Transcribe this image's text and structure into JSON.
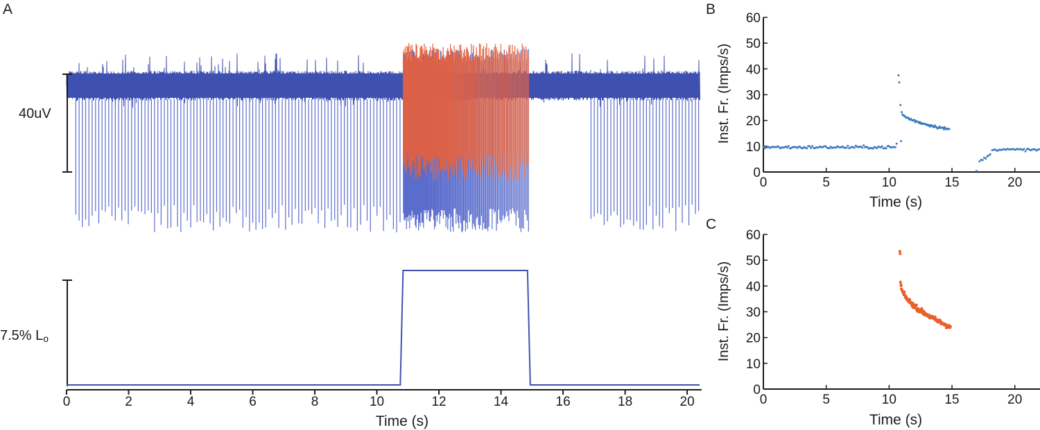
{
  "colors": {
    "trace": "#3f51b0",
    "trace_light": "#5a6ccc",
    "highlight": "#e8603a",
    "b_points": "#3c7dbf",
    "c_points": "#e8602c",
    "axis": "#1a1a1a"
  },
  "chart_data": [
    {
      "panel": "A",
      "type": "line",
      "description_of_content": "raw nerve recording trace",
      "scale_bar_label": "40uV",
      "baseline_firing_hz": 9.5,
      "stim_window_s": [
        10.8,
        14.9
      ],
      "recovery_gap_s": [
        14.9,
        16.9
      ],
      "xlim": [
        0,
        20.4
      ]
    },
    {
      "panel": "A-lower",
      "type": "line",
      "scale_bar_label": "7.5% L",
      "scale_bar_subscript": "o",
      "xlabel": "Time (s)",
      "xticks": [
        0,
        2,
        4,
        6,
        8,
        10,
        12,
        14,
        16,
        18,
        20
      ],
      "xlim": [
        0,
        20.4
      ],
      "step": {
        "low": 0,
        "high": 1,
        "start": 10.8,
        "end": 14.9
      }
    },
    {
      "panel": "B",
      "type": "scatter",
      "xlabel": "Time (s)",
      "ylabel": "Inst. Fr. (Imps/s)",
      "xlim": [
        0,
        22
      ],
      "ylim": [
        0,
        60
      ],
      "xticks": [
        0,
        5,
        10,
        15,
        20
      ],
      "yticks": [
        0,
        10,
        20,
        30,
        40,
        50,
        60
      ],
      "segments": [
        {
          "x_start": 0.0,
          "x_end": 10.5,
          "y_start": 9.6,
          "y_end": 9.6,
          "noise": 0.5,
          "spacing": 0.105
        },
        {
          "x_start": 11.0,
          "x_end": 14.8,
          "y_start": 23.0,
          "y_end": 16.5,
          "noise": 0.45,
          "spacing": 0.06
        },
        {
          "x_start": 17.2,
          "x_end": 18.1,
          "y_start": 4.2,
          "y_end": 6.8,
          "noise": 0.3,
          "spacing": 0.12
        },
        {
          "x_start": 18.2,
          "x_end": 22.0,
          "y_start": 8.8,
          "y_end": 8.6,
          "noise": 0.4,
          "spacing": 0.11
        }
      ],
      "extra_points": [
        [
          10.75,
          37.5
        ],
        [
          10.8,
          34.8
        ],
        [
          10.9,
          26.0
        ],
        [
          10.6,
          11.0
        ],
        [
          10.95,
          12.0
        ],
        [
          16.95,
          0.4
        ]
      ]
    },
    {
      "panel": "C",
      "type": "scatter",
      "xlabel": "Time (s)",
      "ylabel": "Inst. Fr. (Imps/s)",
      "xlim": [
        0,
        22
      ],
      "ylim": [
        0,
        60
      ],
      "xticks": [
        0,
        5,
        10,
        15,
        20
      ],
      "yticks": [
        0,
        10,
        20,
        30,
        40,
        50,
        60
      ],
      "segments": [
        {
          "x_start": 10.95,
          "x_end": 14.9,
          "y_start": 40.0,
          "y_end": 24.0,
          "noise": 0.8,
          "spacing": 0.03
        }
      ],
      "extra_points": [
        [
          10.85,
          53.5
        ],
        [
          10.88,
          52.5
        ],
        [
          10.9,
          41.5
        ],
        [
          10.95,
          40.5
        ]
      ]
    }
  ],
  "labels": {
    "panel_a": "A",
    "panel_b": "B",
    "panel_c": "C"
  }
}
